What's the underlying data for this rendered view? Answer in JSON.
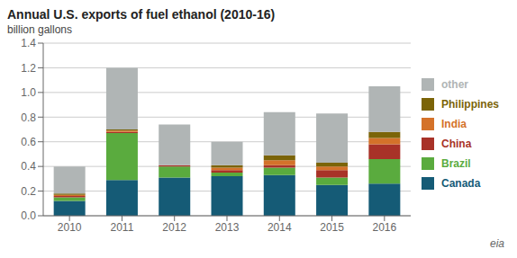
{
  "chart_data": {
    "type": "bar",
    "stacked": true,
    "title": "Annual U.S. exports of fuel ethanol (2010-16)",
    "ylabel": "billion gallons",
    "categories": [
      "2010",
      "2011",
      "2012",
      "2013",
      "2014",
      "2015",
      "2016"
    ],
    "series": [
      {
        "name": "Canada",
        "color": "#155b76",
        "values": [
          0.12,
          0.29,
          0.31,
          0.32,
          0.33,
          0.25,
          0.26
        ]
      },
      {
        "name": "Brazil",
        "color": "#5aab3e",
        "values": [
          0.03,
          0.38,
          0.09,
          0.03,
          0.06,
          0.06,
          0.2
        ]
      },
      {
        "name": "China",
        "color": "#a83228",
        "values": [
          0.01,
          0.01,
          0.01,
          0.02,
          0.02,
          0.06,
          0.12
        ]
      },
      {
        "name": "India",
        "color": "#d4722a",
        "values": [
          0.01,
          0.01,
          0.0,
          0.02,
          0.04,
          0.03,
          0.05
        ]
      },
      {
        "name": "Philippines",
        "color": "#7b6408",
        "values": [
          0.01,
          0.01,
          0.0,
          0.02,
          0.04,
          0.03,
          0.05
        ]
      },
      {
        "name": "other",
        "color": "#b0b5b5",
        "values": [
          0.22,
          0.5,
          0.33,
          0.19,
          0.35,
          0.4,
          0.37
        ]
      }
    ],
    "ylim": [
      0,
      1.4
    ],
    "yticks": [
      {
        "value": 0,
        "label": "0.0"
      },
      0.2,
      0.4,
      0.6,
      0.8,
      {
        "value": 1,
        "label": "1.0"
      },
      1.2,
      1.4
    ],
    "grid": true,
    "legend": "right",
    "annotations": [
      "eia"
    ]
  }
}
